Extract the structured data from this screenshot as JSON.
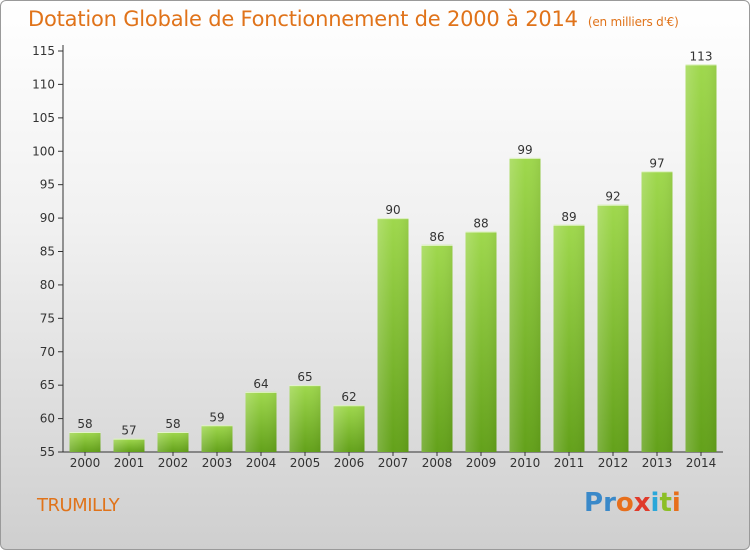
{
  "title": "Dotation Globale de Fonctionnement de 2000 à 2014",
  "subtitle": "(en milliers d'€)",
  "commune": "TRUMILLY",
  "brand": {
    "letters": [
      "P",
      "r",
      "o",
      "x",
      "i",
      "t",
      "i"
    ],
    "colors": [
      "#3a89c9",
      "#3a89c9",
      "#e76f1c",
      "#e03a2a",
      "#2aa7d9",
      "#8cbf26",
      "#e76f1c"
    ]
  },
  "colors": {
    "title": "#e0731a",
    "bar_top": "#9fd84d",
    "bar_bottom": "#63a11a"
  },
  "chart_data": {
    "type": "bar",
    "categories": [
      "2000",
      "2001",
      "2002",
      "2003",
      "2004",
      "2005",
      "2006",
      "2007",
      "2008",
      "2009",
      "2010",
      "2011",
      "2012",
      "2013",
      "2014"
    ],
    "values": [
      58,
      57,
      58,
      59,
      64,
      65,
      62,
      90,
      86,
      88,
      99,
      89,
      92,
      97,
      113
    ],
    "ylim": [
      55,
      115
    ],
    "yticks": [
      55,
      60,
      65,
      70,
      75,
      80,
      85,
      90,
      95,
      100,
      105,
      110,
      115
    ],
    "grid": false,
    "xlabel": "",
    "ylabel": ""
  }
}
